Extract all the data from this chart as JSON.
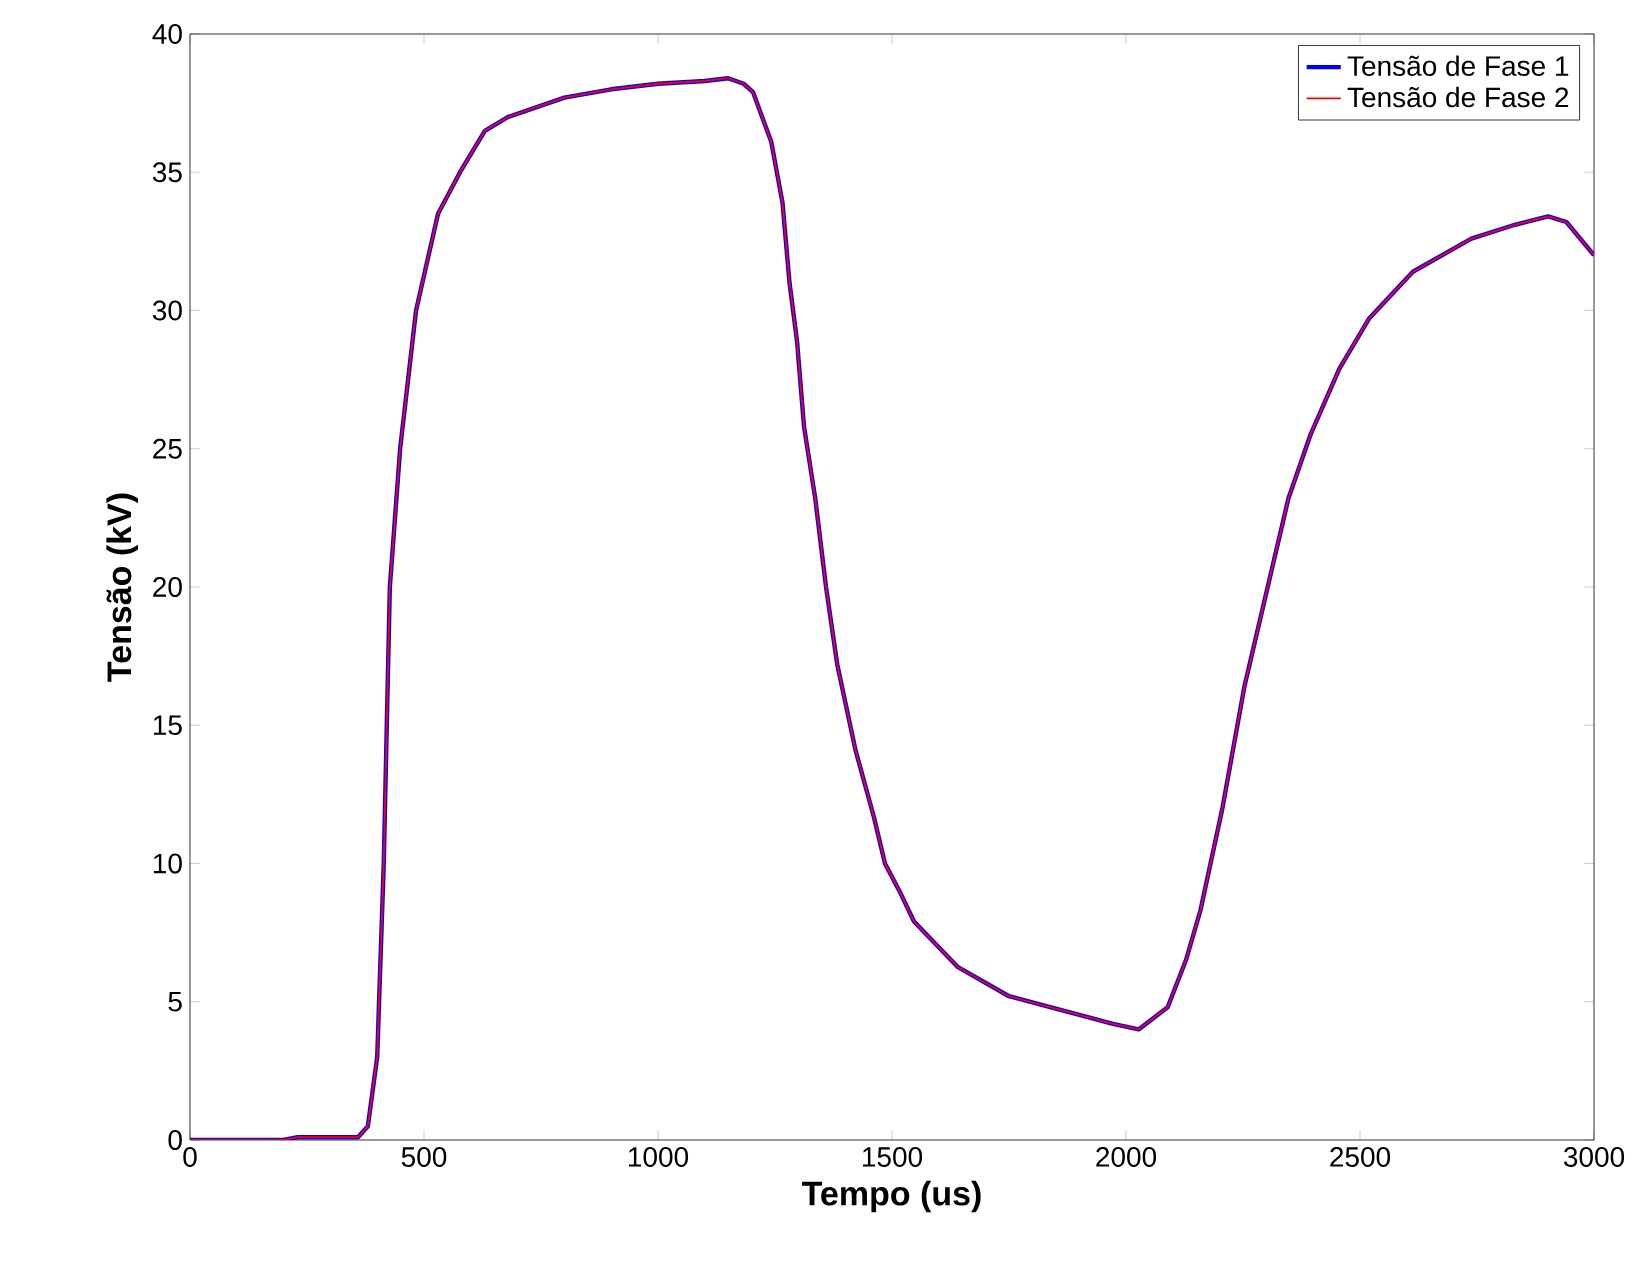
{
  "chart_data": {
    "type": "line",
    "xlabel": "Tempo (us)",
    "ylabel": "Tensão (kV)",
    "x": [
      0,
      200,
      230,
      350,
      359,
      380,
      400,
      414,
      427,
      449,
      483,
      530,
      577,
      630,
      680,
      800,
      900,
      1000,
      1100,
      1150,
      1183,
      1203,
      1242,
      1266,
      1281,
      1297,
      1312,
      1336,
      1359,
      1383,
      1422,
      1461,
      1485,
      1516,
      1547,
      1641,
      1750,
      1862,
      1972,
      2027,
      2089,
      2128,
      2159,
      2206,
      2253,
      2300,
      2347,
      2394,
      2456,
      2519,
      2613,
      2738,
      2831,
      2902,
      2941,
      3000
    ],
    "series": [
      {
        "name": "Tensão de Fase 1",
        "color": "#0000ff",
        "values": [
          0,
          0,
          0.1,
          0.1,
          0.1,
          0.5,
          3,
          10,
          20,
          25,
          30,
          33.5,
          35,
          36.5,
          37,
          37.7,
          38,
          38.2,
          38.3,
          38.4,
          38.2,
          37.9,
          36.1,
          33.9,
          31,
          28.9,
          25.8,
          23.2,
          20,
          17.2,
          14.1,
          11.7,
          10,
          9,
          7.9,
          6.25,
          5.2,
          4.7,
          4.2,
          4,
          4.8,
          6.5,
          8.3,
          12,
          16.4,
          19.8,
          23.2,
          25.5,
          27.9,
          29.7,
          31.4,
          32.6,
          33.1,
          33.4,
          33.2,
          32
        ]
      },
      {
        "name": "Tensão de Fase 2",
        "color": "#ff0000",
        "values": [
          0,
          0,
          0.1,
          0.1,
          0.1,
          0.5,
          3,
          10,
          20,
          25,
          30,
          33.5,
          35,
          36.5,
          37,
          37.7,
          38,
          38.2,
          38.3,
          38.4,
          38.2,
          37.9,
          36.1,
          33.9,
          31,
          28.9,
          25.8,
          23.2,
          20,
          17.2,
          14.1,
          11.7,
          10,
          9,
          7.9,
          6.25,
          5.2,
          4.7,
          4.2,
          4,
          4.8,
          6.5,
          8.3,
          12,
          16.4,
          19.8,
          23.2,
          25.5,
          27.9,
          29.7,
          31.4,
          32.6,
          33.1,
          33.4,
          33.2,
          32
        ]
      }
    ],
    "xlim": [
      0,
      3000
    ],
    "ylim": [
      0,
      40
    ],
    "xticks": [
      0,
      500,
      1000,
      1500,
      2000,
      2500,
      3000
    ],
    "yticks": [
      0,
      5,
      10,
      15,
      20,
      25,
      30,
      35,
      40
    ],
    "legend": "top right",
    "marker": "none",
    "line_style": "solid"
  }
}
